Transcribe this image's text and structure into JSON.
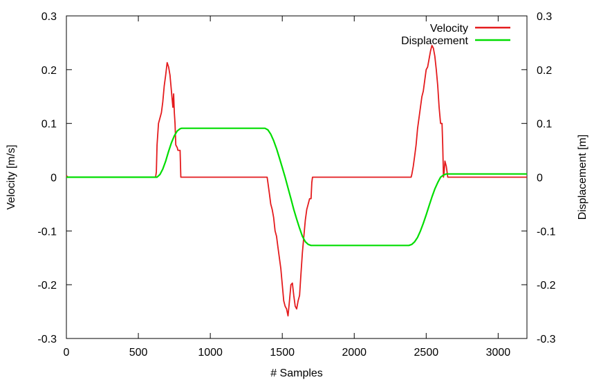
{
  "chart_data": {
    "type": "line",
    "title": "",
    "xlabel": "# Samples",
    "ylabel": "Velocity [m/s]",
    "y2label": "Displacement [m]",
    "xlim": [
      0,
      3200
    ],
    "ylim": [
      -0.3,
      0.3
    ],
    "y2lim": [
      -0.3,
      0.3
    ],
    "x_ticks": [
      0,
      500,
      1000,
      1500,
      2000,
      2500,
      3000
    ],
    "y_ticks": [
      -0.3,
      -0.2,
      -0.1,
      0,
      0.1,
      0.2,
      0.3
    ],
    "y2_ticks": [
      -0.3,
      -0.2,
      -0.1,
      0,
      0.1,
      0.2,
      0.3
    ],
    "grid": false,
    "legend_position": "top-right",
    "series": [
      {
        "name": "Velocity",
        "axis": "left",
        "color": "#e41a1c",
        "x": [
          0,
          10,
          20,
          620,
          625,
          630,
          640,
          650,
          660,
          670,
          680,
          690,
          700,
          710,
          720,
          730,
          740,
          745,
          750,
          755,
          760,
          770,
          775,
          780,
          790,
          795,
          800,
          1395,
          1400,
          1410,
          1420,
          1430,
          1440,
          1450,
          1460,
          1470,
          1480,
          1490,
          1500,
          1510,
          1520,
          1530,
          1540,
          1550,
          1560,
          1570,
          1580,
          1590,
          1600,
          1610,
          1620,
          1630,
          1640,
          1650,
          1660,
          1670,
          1680,
          1690,
          1700,
          1705,
          1710,
          2395,
          2400,
          2410,
          2420,
          2430,
          2440,
          2450,
          2460,
          2470,
          2480,
          2490,
          2500,
          2510,
          2520,
          2530,
          2540,
          2550,
          2560,
          2570,
          2580,
          2590,
          2600,
          2610,
          2615,
          2620,
          2625,
          2630,
          2640,
          2650,
          2660,
          2670,
          3200
        ],
        "y": [
          0.003,
          0.0,
          0.0,
          0.0,
          0.01,
          0.06,
          0.1,
          0.11,
          0.12,
          0.14,
          0.17,
          0.19,
          0.213,
          0.205,
          0.19,
          0.16,
          0.13,
          0.155,
          0.12,
          0.1,
          0.06,
          0.055,
          0.05,
          0.05,
          0.05,
          0.0,
          0.0,
          0.0,
          -0.01,
          -0.03,
          -0.05,
          -0.06,
          -0.075,
          -0.1,
          -0.11,
          -0.13,
          -0.15,
          -0.17,
          -0.2,
          -0.23,
          -0.24,
          -0.245,
          -0.258,
          -0.23,
          -0.2,
          -0.197,
          -0.22,
          -0.24,
          -0.245,
          -0.23,
          -0.22,
          -0.18,
          -0.14,
          -0.11,
          -0.08,
          -0.06,
          -0.05,
          -0.04,
          -0.04,
          -0.01,
          0.0,
          0.0,
          0.005,
          0.02,
          0.04,
          0.06,
          0.09,
          0.11,
          0.13,
          0.15,
          0.16,
          0.18,
          0.2,
          0.205,
          0.22,
          0.235,
          0.245,
          0.24,
          0.225,
          0.2,
          0.17,
          0.13,
          0.1,
          0.1,
          0.06,
          0.0,
          0.01,
          0.03,
          0.02,
          0.0,
          0.0,
          0.0,
          0.0
        ]
      },
      {
        "name": "Displacement",
        "axis": "right",
        "color": "#00dd00",
        "x": [
          0,
          630,
          650,
          670,
          690,
          710,
          730,
          750,
          770,
          790,
          800,
          1380,
          1400,
          1420,
          1440,
          1460,
          1480,
          1500,
          1520,
          1540,
          1560,
          1580,
          1600,
          1620,
          1640,
          1660,
          1680,
          1700,
          1720,
          2380,
          2400,
          2420,
          2440,
          2460,
          2480,
          2500,
          2520,
          2540,
          2560,
          2580,
          2600,
          2620,
          2640,
          2660,
          3200
        ],
        "y": [
          0.0,
          0.0,
          0.005,
          0.015,
          0.03,
          0.048,
          0.064,
          0.077,
          0.086,
          0.09,
          0.091,
          0.091,
          0.088,
          0.08,
          0.068,
          0.053,
          0.036,
          0.018,
          0.0,
          -0.02,
          -0.04,
          -0.06,
          -0.078,
          -0.095,
          -0.11,
          -0.12,
          -0.125,
          -0.127,
          -0.127,
          -0.127,
          -0.125,
          -0.12,
          -0.112,
          -0.1,
          -0.086,
          -0.07,
          -0.053,
          -0.037,
          -0.022,
          -0.01,
          0.0,
          0.004,
          0.006,
          0.006,
          0.006
        ]
      }
    ]
  }
}
